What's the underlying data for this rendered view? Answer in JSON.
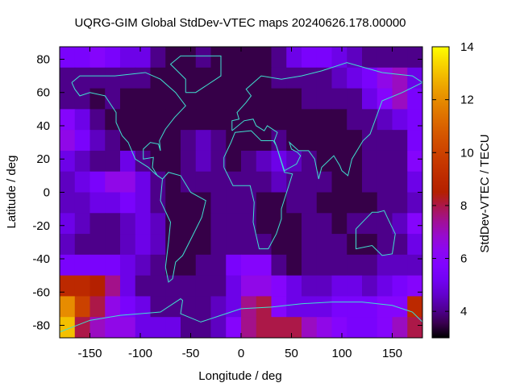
{
  "chart_data": {
    "type": "heatmap",
    "title": "UQRG-GIM Global StdDev-VTEC maps 20240626.178.00000",
    "xlabel": "Longitude / deg",
    "ylabel": "Latitude / deg",
    "cblabel": "StdDev-VTEC / TECU",
    "xlim": [
      -180,
      180
    ],
    "ylim": [
      -87.5,
      87.5
    ],
    "cbrange": [
      3,
      14
    ],
    "xticks": [
      -150,
      -100,
      -50,
      0,
      50,
      100,
      150
    ],
    "yticks": [
      -80,
      -60,
      -40,
      -20,
      0,
      20,
      40,
      60,
      80
    ],
    "cbticks": [
      4,
      6,
      8,
      10,
      12,
      14
    ],
    "palette": "black-blue-violet-red-yellow",
    "coastline_color": "#40e0d0",
    "grid": false,
    "lon_edges": [
      -180,
      -165,
      -150,
      -135,
      -120,
      -105,
      -90,
      -75,
      -60,
      -45,
      -30,
      -15,
      0,
      15,
      30,
      45,
      60,
      75,
      90,
      105,
      120,
      135,
      150,
      165,
      180
    ],
    "lat_edges": [
      87.5,
      75,
      62.5,
      50,
      37.5,
      25,
      12.5,
      0,
      -12.5,
      -25,
      -37.5,
      -50,
      -62.5,
      -75,
      -87.5
    ],
    "values": [
      [
        5.5,
        5.5,
        6,
        5.5,
        5,
        5,
        4,
        3.5,
        3.5,
        4,
        3.5,
        3.5,
        3.5,
        3.5,
        4,
        5,
        5.5,
        5.5,
        5,
        4.5,
        4,
        4,
        4,
        4
      ],
      [
        4,
        4,
        4,
        4,
        4,
        4,
        3.5,
        3.5,
        3.5,
        3.5,
        3.5,
        3.5,
        3.5,
        3.5,
        4,
        4,
        4,
        4,
        4.5,
        5,
        5.5,
        6.5,
        7,
        5
      ],
      [
        4,
        4,
        3.5,
        4,
        3.5,
        3.5,
        3.5,
        3.5,
        3.5,
        3.5,
        3.5,
        3.5,
        3.5,
        3.5,
        3.5,
        3.5,
        4,
        4,
        4,
        4,
        5,
        6,
        7,
        5.5
      ],
      [
        6,
        5,
        4,
        3.5,
        3.5,
        3.5,
        3.5,
        3.5,
        3.5,
        3.5,
        3.5,
        3.5,
        3.5,
        3.5,
        3.5,
        3.5,
        3.5,
        3.5,
        3.5,
        4,
        4,
        4.5,
        5,
        5.5
      ],
      [
        6.5,
        5.5,
        4.5,
        4,
        3.5,
        3.5,
        3.5,
        3.5,
        4,
        4.5,
        4,
        3.5,
        3.5,
        3.5,
        4,
        3.5,
        3.5,
        3.5,
        3.5,
        3.5,
        4,
        4,
        4,
        5.5
      ],
      [
        5,
        4.5,
        4,
        4,
        5,
        4,
        3.5,
        3.5,
        4,
        4.5,
        4,
        3.5,
        4,
        4.5,
        5,
        4.5,
        4,
        3.5,
        3.5,
        3.5,
        4,
        4,
        4,
        6
      ],
      [
        4.5,
        5,
        5.5,
        6.5,
        6.5,
        5,
        4,
        3.5,
        4,
        4,
        4,
        4,
        4,
        4,
        4.5,
        4,
        4,
        4,
        3.5,
        3.5,
        4,
        4,
        4,
        5
      ],
      [
        4.5,
        4.5,
        5,
        5,
        5.5,
        5,
        4,
        3.5,
        3.5,
        3.5,
        4,
        4,
        4,
        3.5,
        3.5,
        4,
        4,
        3.5,
        3.5,
        3.5,
        3.5,
        4,
        4,
        4.5
      ],
      [
        5,
        4.5,
        4,
        4,
        4.5,
        5,
        4.5,
        3.5,
        3.5,
        3.5,
        4,
        4,
        4,
        3.5,
        3.5,
        3.5,
        4,
        4,
        3.5,
        4,
        4,
        4,
        4.5,
        6
      ],
      [
        4.5,
        4,
        4,
        4,
        4.5,
        5,
        4.5,
        3.5,
        3.5,
        3.5,
        4,
        4,
        4,
        4,
        3.5,
        3.5,
        4,
        4,
        4,
        3.5,
        3.5,
        4,
        4,
        5
      ],
      [
        5.5,
        5.5,
        5.5,
        5.5,
        5,
        4.5,
        4,
        3.5,
        3.5,
        4,
        4,
        5.5,
        6,
        6,
        4,
        3.5,
        4,
        4,
        4,
        4,
        4,
        4.5,
        4.5,
        4.5
      ],
      [
        9,
        9,
        8.5,
        7.5,
        5,
        4,
        4,
        4,
        4,
        4,
        4,
        5,
        6.5,
        6.5,
        6,
        5,
        4.5,
        4.5,
        5,
        5,
        4.5,
        5,
        5.5,
        6
      ],
      [
        12,
        10,
        8,
        6.5,
        5.5,
        5,
        4,
        4,
        4,
        4,
        4.5,
        5,
        7.5,
        8,
        6,
        5,
        5,
        5,
        5.5,
        5.5,
        5.5,
        6,
        6,
        9
      ],
      [
        13,
        8,
        7,
        6.5,
        6.5,
        5,
        5,
        5,
        4,
        4,
        4.5,
        6,
        7.5,
        8,
        8,
        8,
        7,
        6.5,
        6,
        5.5,
        5.5,
        6,
        7,
        8
      ]
    ],
    "coastlines": [
      [
        [
          -168,
          66
        ],
        [
          -160,
          70
        ],
        [
          -140,
          70
        ],
        [
          -125,
          70
        ],
        [
          -95,
          72
        ],
        [
          -80,
          68
        ],
        [
          -65,
          60
        ],
        [
          -55,
          52
        ],
        [
          -66,
          45
        ],
        [
          -75,
          38
        ],
        [
          -81,
          31
        ],
        [
          -80,
          25
        ],
        [
          -82,
          29
        ],
        [
          -90,
          30
        ],
        [
          -97,
          26
        ],
        [
          -97,
          20
        ],
        [
          -87,
          21
        ],
        [
          -88,
          15
        ],
        [
          -83,
          10
        ],
        [
          -78,
          8
        ],
        [
          -85,
          11
        ],
        [
          -92,
          15
        ],
        [
          -105,
          20
        ],
        [
          -112,
          30
        ],
        [
          -118,
          34
        ],
        [
          -124,
          42
        ],
        [
          -124,
          48
        ],
        [
          -135,
          58
        ],
        [
          -150,
          60
        ],
        [
          -160,
          58
        ],
        [
          -165,
          62
        ],
        [
          -168,
          66
        ]
      ],
      [
        [
          -78,
          8
        ],
        [
          -72,
          12
        ],
        [
          -60,
          10
        ],
        [
          -50,
          0
        ],
        [
          -35,
          -5
        ],
        [
          -39,
          -15
        ],
        [
          -48,
          -26
        ],
        [
          -58,
          -38
        ],
        [
          -65,
          -42
        ],
        [
          -68,
          -52
        ],
        [
          -72,
          -54
        ],
        [
          -75,
          -45
        ],
        [
          -72,
          -30
        ],
        [
          -70,
          -18
        ],
        [
          -80,
          -5
        ],
        [
          -78,
          8
        ]
      ],
      [
        [
          -17,
          15
        ],
        [
          -17,
          21
        ],
        [
          -10,
          30
        ],
        [
          -6,
          36
        ],
        [
          10,
          37
        ],
        [
          20,
          31
        ],
        [
          32,
          31
        ],
        [
          35,
          28
        ],
        [
          43,
          12
        ],
        [
          51,
          11
        ],
        [
          40,
          -10
        ],
        [
          40,
          -16
        ],
        [
          35,
          -25
        ],
        [
          27,
          -34
        ],
        [
          18,
          -34
        ],
        [
          12,
          -18
        ],
        [
          13,
          -6
        ],
        [
          9,
          4
        ],
        [
          -8,
          4
        ],
        [
          -17,
          15
        ]
      ],
      [
        [
          -9,
          37
        ],
        [
          -9,
          43
        ],
        [
          -2,
          44
        ],
        [
          -4,
          48
        ],
        [
          5,
          54
        ],
        [
          10,
          58
        ],
        [
          5,
          62
        ],
        [
          20,
          70
        ],
        [
          40,
          68
        ],
        [
          60,
          70
        ],
        [
          80,
          73
        ],
        [
          105,
          78
        ],
        [
          140,
          72
        ],
        [
          170,
          70
        ],
        [
          180,
          66
        ],
        [
          160,
          60
        ],
        [
          140,
          55
        ],
        [
          128,
          35
        ],
        [
          121,
          31
        ],
        [
          110,
          20
        ],
        [
          106,
          10
        ],
        [
          100,
          13
        ],
        [
          98,
          16
        ],
        [
          92,
          22
        ],
        [
          80,
          15
        ],
        [
          77,
          8
        ],
        [
          73,
          20
        ],
        [
          67,
          25
        ],
        [
          57,
          25
        ],
        [
          48,
          30
        ],
        [
          50,
          26
        ],
        [
          56,
          24
        ],
        [
          59,
          22
        ],
        [
          55,
          17
        ],
        [
          43,
          13
        ],
        [
          35,
          28
        ],
        [
          33,
          31
        ],
        [
          36,
          36
        ],
        [
          26,
          40
        ],
        [
          23,
          37
        ],
        [
          15,
          40
        ],
        [
          12,
          44
        ],
        [
          3,
          43
        ],
        [
          -9,
          37
        ]
      ],
      [
        [
          114,
          -22
        ],
        [
          114,
          -34
        ],
        [
          130,
          -32
        ],
        [
          140,
          -38
        ],
        [
          150,
          -37
        ],
        [
          153,
          -25
        ],
        [
          145,
          -15
        ],
        [
          142,
          -11
        ],
        [
          136,
          -12
        ],
        [
          130,
          -12
        ],
        [
          122,
          -17
        ],
        [
          114,
          -22
        ]
      ],
      [
        [
          -55,
          60
        ],
        [
          -45,
          60
        ],
        [
          -20,
          70
        ],
        [
          -20,
          82
        ],
        [
          -60,
          82
        ],
        [
          -70,
          77
        ],
        [
          -55,
          68
        ],
        [
          -55,
          60
        ]
      ],
      [
        [
          -180,
          -84
        ],
        [
          -150,
          -77
        ],
        [
          -120,
          -74
        ],
        [
          -80,
          -72
        ],
        [
          -60,
          -64
        ],
        [
          -58,
          -65
        ],
        [
          -60,
          -73
        ],
        [
          -40,
          -78
        ],
        [
          -20,
          -74
        ],
        [
          0,
          -70
        ],
        [
          30,
          -69
        ],
        [
          60,
          -67
        ],
        [
          90,
          -66
        ],
        [
          120,
          -66
        ],
        [
          150,
          -68
        ],
        [
          170,
          -72
        ],
        [
          180,
          -78
        ]
      ]
    ]
  }
}
